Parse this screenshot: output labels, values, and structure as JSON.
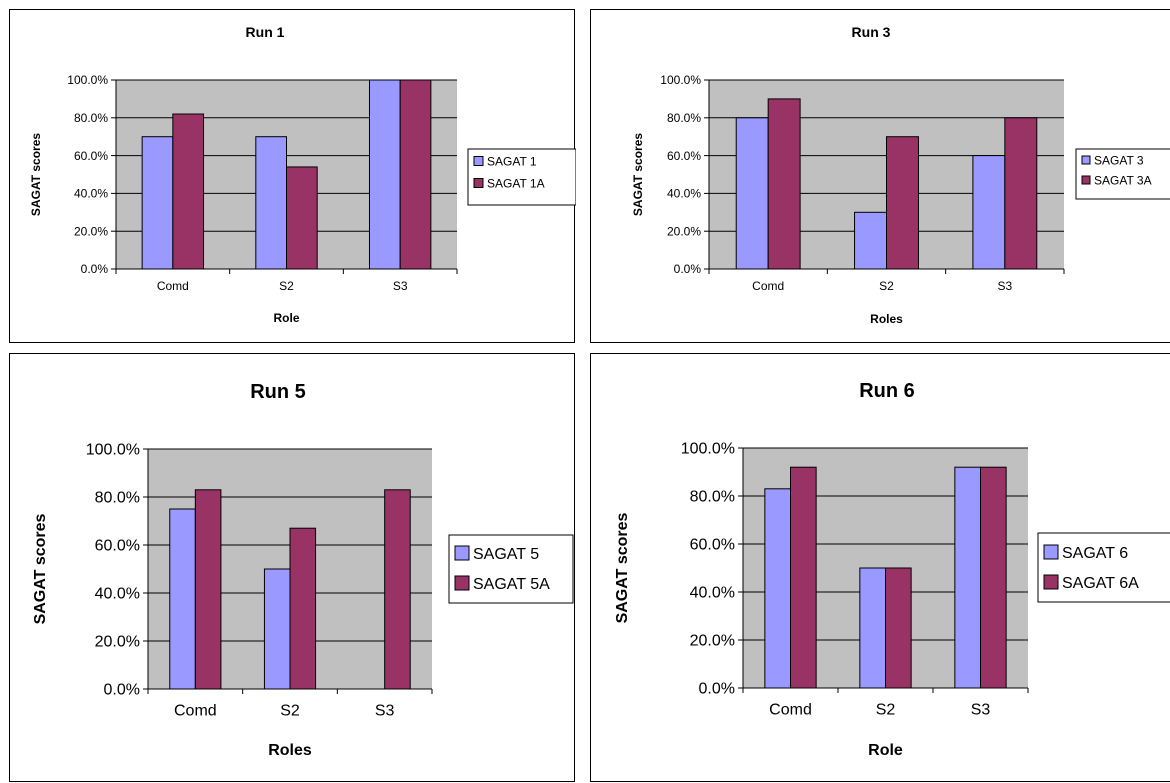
{
  "chart_data": [
    {
      "type": "bar",
      "title": "Run 1",
      "xlabel": "Role",
      "ylabel": "SAGAT scores",
      "categories": [
        "Comd",
        "S2",
        "S3"
      ],
      "ylim": [
        0,
        100
      ],
      "yticks": [
        "0.0%",
        "20.0%",
        "40.0%",
        "60.0%",
        "80.0%",
        "100.0%"
      ],
      "series": [
        {
          "name": "SAGAT 1",
          "values": [
            70,
            70,
            100
          ],
          "color": "#9999ff"
        },
        {
          "name": "SAGAT 1A",
          "values": [
            82,
            54,
            100
          ],
          "color": "#993366"
        }
      ],
      "grid": true,
      "legend": "right"
    },
    {
      "type": "bar",
      "title": "Run 3",
      "xlabel": "Roles",
      "ylabel": "SAGAT scores",
      "categories": [
        "Comd",
        "S2",
        "S3"
      ],
      "ylim": [
        0,
        100
      ],
      "yticks": [
        "0.0%",
        "20.0%",
        "40.0%",
        "60.0%",
        "80.0%",
        "100.0%"
      ],
      "series": [
        {
          "name": "SAGAT 3",
          "values": [
            80,
            30,
            60
          ],
          "color": "#9999ff"
        },
        {
          "name": "SAGAT 3A",
          "values": [
            90,
            70,
            80
          ],
          "color": "#993366"
        }
      ],
      "grid": true,
      "legend": "right"
    },
    {
      "type": "bar",
      "title": "Run 5",
      "xlabel": "Roles",
      "ylabel": "SAGAT scores",
      "categories": [
        "Comd",
        "S2",
        "S3"
      ],
      "ylim": [
        0,
        100
      ],
      "yticks": [
        "0.0%",
        "20.0%",
        "40.0%",
        "60.0%",
        "80.0%",
        "100.0%"
      ],
      "series": [
        {
          "name": "SAGAT 5",
          "values": [
            75,
            50,
            0
          ],
          "color": "#9999ff"
        },
        {
          "name": "SAGAT 5A",
          "values": [
            83,
            67,
            83
          ],
          "color": "#993366"
        }
      ],
      "grid": true,
      "legend": "right"
    },
    {
      "type": "bar",
      "title": "Run 6",
      "xlabel": "Role",
      "ylabel": "SAGAT scores",
      "categories": [
        "Comd",
        "S2",
        "S3"
      ],
      "ylim": [
        0,
        100
      ],
      "yticks": [
        "0.0%",
        "20.0%",
        "40.0%",
        "60.0%",
        "80.0%",
        "100.0%"
      ],
      "series": [
        {
          "name": "SAGAT 6",
          "values": [
            83,
            50,
            92
          ],
          "color": "#9999ff"
        },
        {
          "name": "SAGAT 6A",
          "values": [
            92,
            50,
            92
          ],
          "color": "#993366"
        }
      ],
      "grid": true,
      "legend": "right"
    }
  ]
}
